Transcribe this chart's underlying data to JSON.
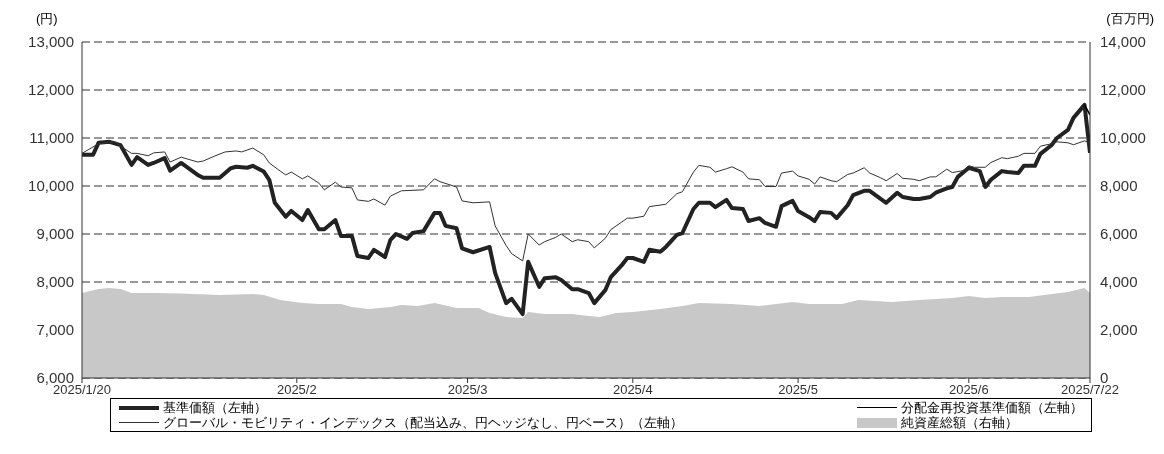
{
  "chart_data": {
    "type": "line",
    "ylabel": "(円)",
    "y2label": "(百万円)",
    "xlim": [
      "2025-01-20",
      "2025-07-22"
    ],
    "xticks": [
      {
        "value": "2025-01-20",
        "label": "2025/1/20"
      },
      {
        "value": "2025-02-28",
        "label": "2025/2"
      },
      {
        "value": "2025-03-31",
        "label": "2025/3"
      },
      {
        "value": "2025-04-30",
        "label": "2025/4"
      },
      {
        "value": "2025-05-30",
        "label": "2025/5"
      },
      {
        "value": "2025-06-30",
        "label": "2025/6"
      },
      {
        "value": "2025-07-22",
        "label": "2025/7/22"
      }
    ],
    "ylim": [
      6000,
      13000
    ],
    "yticks": [
      {
        "value": 6000,
        "label": "6,000"
      },
      {
        "value": 7000,
        "label": "7,000"
      },
      {
        "value": 8000,
        "label": "8,000"
      },
      {
        "value": 9000,
        "label": "9,000"
      },
      {
        "value": 10000,
        "label": "10,000"
      },
      {
        "value": 11000,
        "label": "11,000"
      },
      {
        "value": 12000,
        "label": "12,000"
      },
      {
        "value": 13000,
        "label": "13,000"
      }
    ],
    "y2lim": [
      0,
      14000
    ],
    "y2ticks": [
      0,
      {
        "value": 2000,
        "label": "2,000"
      },
      {
        "value": 4000,
        "label": "4,000"
      },
      {
        "value": 6000,
        "label": "6,000"
      },
      {
        "value": 8000,
        "label": "8,000"
      },
      {
        "value": 10000,
        "label": "10,000"
      },
      {
        "value": 12000,
        "label": "12,000"
      },
      {
        "value": 14000,
        "label": "14,000"
      }
    ],
    "grid": "y",
    "legend": "bottom",
    "line_style": "solid",
    "marker": "none",
    "series": [
      {
        "name": "基準価額（左軸）",
        "type": "line",
        "color": "#222222",
        "x": [
          "2025-01-20",
          "2025-01-22",
          "2025-01-23",
          "2025-01-25",
          "2025-01-27",
          "2025-01-29",
          "2025-01-30",
          "2025-02-01",
          "2025-02-02",
          "2025-02-04",
          "2025-02-05",
          "2025-02-07",
          "2025-02-10",
          "2025-02-11",
          "2025-02-14",
          "2025-02-16",
          "2025-02-17",
          "2025-02-19",
          "2025-02-20",
          "2025-02-22",
          "2025-02-23",
          "2025-02-24",
          "2025-02-26",
          "2025-02-27",
          "2025-03-01",
          "2025-03-02",
          "2025-03-04",
          "2025-03-05",
          "2025-03-07",
          "2025-03-08",
          "2025-03-10",
          "2025-03-11",
          "2025-03-13",
          "2025-03-14",
          "2025-03-16",
          "2025-03-17",
          "2025-03-18",
          "2025-03-20",
          "2025-03-21",
          "2025-03-23",
          "2025-03-25",
          "2025-03-26",
          "2025-03-27",
          "2025-03-29",
          "2025-03-30",
          "2025-04-01",
          "2025-04-04",
          "2025-04-05",
          "2025-04-07",
          "2025-04-08",
          "2025-04-10",
          "2025-04-11",
          "2025-04-13",
          "2025-04-14",
          "2025-04-16",
          "2025-04-17",
          "2025-04-19",
          "2025-04-20",
          "2025-04-22",
          "2025-04-23",
          "2025-04-25",
          "2025-04-26",
          "2025-04-28",
          "2025-04-29",
          "2025-04-30",
          "2025-05-02",
          "2025-05-03",
          "2025-05-05",
          "2025-05-06",
          "2025-05-08",
          "2025-05-09",
          "2025-05-11",
          "2025-05-12",
          "2025-05-14",
          "2025-05-15",
          "2025-05-17",
          "2025-05-18",
          "2025-05-20",
          "2025-05-21",
          "2025-05-23",
          "2025-05-24",
          "2025-05-26",
          "2025-05-27",
          "2025-05-29",
          "2025-05-30",
          "2025-06-01",
          "2025-06-02",
          "2025-06-03",
          "2025-06-05",
          "2025-06-06",
          "2025-06-08",
          "2025-06-09",
          "2025-06-11",
          "2025-06-12",
          "2025-06-14",
          "2025-06-15",
          "2025-06-17",
          "2025-06-18",
          "2025-06-20",
          "2025-06-21",
          "2025-06-23",
          "2025-06-24",
          "2025-06-26",
          "2025-06-27",
          "2025-06-28",
          "2025-06-30",
          "2025-07-02",
          "2025-07-03",
          "2025-07-04",
          "2025-07-06",
          "2025-07-07",
          "2025-07-09",
          "2025-07-10",
          "2025-07-12",
          "2025-07-13",
          "2025-07-15",
          "2025-07-16",
          "2025-07-18",
          "2025-07-19",
          "2025-07-21",
          "2025-07-22"
        ],
        "values": [
          10650,
          10650,
          10900,
          10920,
          10850,
          10440,
          10600,
          10440,
          10480,
          10580,
          10320,
          10480,
          10230,
          10170,
          10170,
          10370,
          10400,
          10380,
          10420,
          10300,
          10130,
          9650,
          9360,
          9480,
          9290,
          9500,
          9100,
          9100,
          9290,
          8960,
          8960,
          8540,
          8500,
          8670,
          8520,
          8880,
          9000,
          8900,
          9020,
          9060,
          9440,
          9440,
          9170,
          9120,
          8700,
          8620,
          8730,
          8190,
          7560,
          7650,
          7330,
          8420,
          7900,
          8080,
          8100,
          8040,
          7850,
          7850,
          7770,
          7560,
          7830,
          8100,
          8350,
          8500,
          8500,
          8420,
          8670,
          8630,
          8730,
          8980,
          9020,
          9520,
          9650,
          9650,
          9560,
          9710,
          9540,
          9520,
          9270,
          9330,
          9230,
          9150,
          9580,
          9690,
          9480,
          9350,
          9270,
          9460,
          9440,
          9330,
          9600,
          9810,
          9900,
          9900,
          9730,
          9650,
          9860,
          9770,
          9730,
          9730,
          9770,
          9860,
          9950,
          9980,
          10190,
          10380,
          10310,
          9980,
          10130,
          10310,
          10290,
          10270,
          10420,
          10420,
          10670,
          10850,
          11000,
          11170,
          11420,
          11690,
          10690
        ]
      },
      {
        "name": "グローバル・モビリティ・インデックス（配当込み、円ヘッジなし、円ベース）（左軸）",
        "type": "line",
        "color": "#333333",
        "x": [
          "2025-01-20",
          "2025-01-23",
          "2025-01-26",
          "2025-01-27",
          "2025-01-29",
          "2025-01-30",
          "2025-02-01",
          "2025-02-02",
          "2025-02-04",
          "2025-02-05",
          "2025-02-07",
          "2025-02-10",
          "2025-02-11",
          "2025-02-13",
          "2025-02-15",
          "2025-02-17",
          "2025-02-18",
          "2025-02-20",
          "2025-02-22",
          "2025-02-23",
          "2025-02-25",
          "2025-02-26",
          "2025-02-27",
          "2025-03-01",
          "2025-03-02",
          "2025-03-04",
          "2025-03-05",
          "2025-03-07",
          "2025-03-08",
          "2025-03-10",
          "2025-03-11",
          "2025-03-13",
          "2025-03-14",
          "2025-03-16",
          "2025-03-17",
          "2025-03-19",
          "2025-03-23",
          "2025-03-25",
          "2025-03-26",
          "2025-03-29",
          "2025-03-30",
          "2025-04-01",
          "2025-04-04",
          "2025-04-05",
          "2025-04-07",
          "2025-04-08",
          "2025-04-10",
          "2025-04-11",
          "2025-04-13",
          "2025-04-14",
          "2025-04-16",
          "2025-04-17",
          "2025-04-19",
          "2025-04-20",
          "2025-04-22",
          "2025-04-23",
          "2025-04-25",
          "2025-04-26",
          "2025-04-28",
          "2025-04-29",
          "2025-04-30",
          "2025-05-02",
          "2025-05-03",
          "2025-05-06",
          "2025-05-08",
          "2025-05-09",
          "2025-05-11",
          "2025-05-12",
          "2025-05-14",
          "2025-05-15",
          "2025-05-17",
          "2025-05-18",
          "2025-05-20",
          "2025-05-21",
          "2025-05-23",
          "2025-05-24",
          "2025-05-26",
          "2025-05-27",
          "2025-05-29",
          "2025-05-30",
          "2025-06-01",
          "2025-06-02",
          "2025-06-03",
          "2025-06-05",
          "2025-06-06",
          "2025-06-08",
          "2025-06-09",
          "2025-06-11",
          "2025-06-12",
          "2025-06-14",
          "2025-06-15",
          "2025-06-17",
          "2025-06-18",
          "2025-06-20",
          "2025-06-21",
          "2025-06-23",
          "2025-06-24",
          "2025-06-26",
          "2025-06-27",
          "2025-06-29",
          "2025-06-30",
          "2025-07-01",
          "2025-07-03",
          "2025-07-04",
          "2025-07-06",
          "2025-07-07",
          "2025-07-09",
          "2025-07-10",
          "2025-07-12",
          "2025-07-13",
          "2025-07-15",
          "2025-07-16",
          "2025-07-18",
          "2025-07-19",
          "2025-07-21",
          "2025-07-22"
        ],
        "values": [
          10680,
          10880,
          10920,
          10830,
          10680,
          10680,
          10630,
          10690,
          10710,
          10500,
          10600,
          10500,
          10520,
          10620,
          10710,
          10730,
          10710,
          10790,
          10650,
          10480,
          10310,
          10230,
          10290,
          10150,
          10210,
          10060,
          9920,
          10080,
          9980,
          9960,
          9710,
          9680,
          9730,
          9600,
          9790,
          9900,
          9920,
          10150,
          10090,
          9980,
          9690,
          9650,
          9670,
          9170,
          8760,
          8590,
          8440,
          9000,
          8770,
          8840,
          8930,
          9000,
          8840,
          8880,
          8840,
          8710,
          8910,
          9090,
          9250,
          9330,
          9330,
          9370,
          9570,
          9620,
          9840,
          9880,
          10290,
          10430,
          10390,
          10290,
          10360,
          10400,
          10290,
          10150,
          10130,
          9990,
          9990,
          10270,
          10310,
          10210,
          10140,
          10040,
          10190,
          10110,
          10090,
          10240,
          10270,
          10380,
          10270,
          10170,
          10110,
          10260,
          10160,
          10140,
          10110,
          10190,
          10190,
          10350,
          10280,
          10320,
          10420,
          10390,
          10390,
          10490,
          10590,
          10570,
          10620,
          10680,
          10680,
          10830,
          10880,
          10920,
          10900,
          10860,
          10940,
          10900
        ]
      },
      {
        "name": "分配金再投資基準価額（左軸）",
        "type": "line",
        "color": "#000000",
        "x": [
          "2025-07-21",
          "2025-07-22"
        ],
        "values": [
          11690,
          11480
        ]
      },
      {
        "name": "純資産総額（右軸）",
        "type": "area",
        "axis": "y2",
        "color": "#c8c8c8",
        "x": [
          "2025-01-20",
          "2025-01-23",
          "2025-01-25",
          "2025-01-27",
          "2025-01-29",
          "2025-02-02",
          "2025-02-07",
          "2025-02-14",
          "2025-02-20",
          "2025-02-22",
          "2025-02-25",
          "2025-03-01",
          "2025-03-04",
          "2025-03-08",
          "2025-03-10",
          "2025-03-13",
          "2025-03-17",
          "2025-03-19",
          "2025-03-22",
          "2025-03-25",
          "2025-03-29",
          "2025-04-02",
          "2025-04-04",
          "2025-04-07",
          "2025-04-10",
          "2025-04-11",
          "2025-04-14",
          "2025-04-19",
          "2025-04-22",
          "2025-04-24",
          "2025-04-27",
          "2025-04-30",
          "2025-05-05",
          "2025-05-09",
          "2025-05-12",
          "2025-05-18",
          "2025-05-23",
          "2025-05-29",
          "2025-06-01",
          "2025-06-07",
          "2025-06-10",
          "2025-06-16",
          "2025-06-21",
          "2025-06-27",
          "2025-06-30",
          "2025-07-03",
          "2025-07-06",
          "2025-07-11",
          "2025-07-15",
          "2025-07-18",
          "2025-07-21",
          "2025-07-22"
        ],
        "values": [
          3540,
          3710,
          3750,
          3710,
          3540,
          3540,
          3520,
          3460,
          3500,
          3460,
          3250,
          3130,
          3080,
          3080,
          2960,
          2870,
          2960,
          3040,
          3000,
          3130,
          2920,
          2920,
          2710,
          2540,
          2500,
          2750,
          2670,
          2670,
          2580,
          2540,
          2710,
          2750,
          2870,
          3000,
          3130,
          3080,
          3000,
          3170,
          3080,
          3080,
          3250,
          3170,
          3250,
          3330,
          3420,
          3330,
          3380,
          3380,
          3500,
          3580,
          3750,
          3540
        ]
      }
    ]
  }
}
